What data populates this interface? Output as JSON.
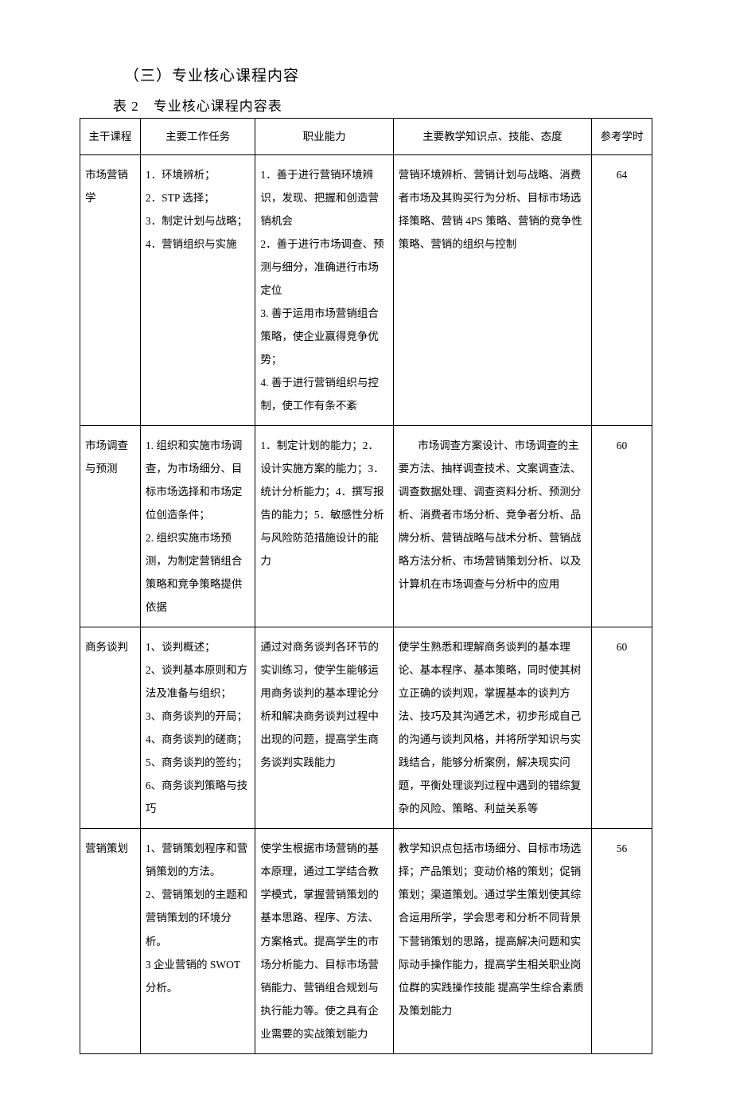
{
  "heading": "（三）专业核心课程内容",
  "caption": "表 2　专业核心课程内容表",
  "table": {
    "columns": [
      "主干课程",
      "主要工作任务",
      "职业能力",
      "主要教学知识点、技能、态度",
      "参考学时"
    ],
    "rows": [
      {
        "course": "市场营销学",
        "tasks": "1．环境辨析；\n2．STP 选择；\n3．制定计划与战略；\n4．营销组织与实施",
        "ability": "1．善于进行营销环境辨识，发现、把握和创造营销机会\n2．善于进行市场调查、预测与细分，准确进行市场定位\n3. 善于运用市场营销组合策略，使企业赢得竞争优势；\n4. 善于进行营销组织与控制，使工作有条不紊",
        "knowledge": "营销环境辨析、营销计划与战略、消费者市场及其购买行为分析、目标市场选择策略、营销 4PS 策略、营销的竞争性策略、营销的组织与控制",
        "hours": "64"
      },
      {
        "course": "市场调查与预测",
        "tasks": "1. 组织和实施市场调查，为市场细分、目标市场选择和市场定位创造条件；\n2. 组织实施市场预测，为制定营销组合策略和竞争策略提供依据",
        "ability": "1．制定计划的能力；2．设计实施方案的能力；3．统计分析能力；4．撰写报告的能力；5．敏感性分析与风险防范措施设计的能力",
        "knowledge_indent": true,
        "knowledge": "市场调查方案设计、市场调查的主要方法、抽样调查技术、文案调查法、调查数据处理、调查资料分析、预测分析、消费者市场分析、竞争者分析、品牌分析、营销战略与战术分析、营销战略方法分析、市场营销策划分析、以及计算机在市场调查与分析中的应用",
        "hours": "60"
      },
      {
        "course": "商务谈判",
        "tasks": "1、谈判概述；\n2、谈判基本原则和方法及准备与组织；\n3、商务谈判的开局；\n4、商务谈判的磋商；\n5、商务谈判的签约；\n6、商务谈判策略与技巧",
        "ability": "通过对商务谈判各环节的实训练习，使学生能够运用商务谈判的基本理论分析和解决商务谈判过程中出现的问题，提高学生商务谈判实践能力",
        "knowledge": "使学生熟悉和理解商务谈判的基本理论、基本程序、基本策略，同时使其树立正确的谈判观，掌握基本的谈判方法、技巧及其沟通艺术，初步形成自己的沟通与谈判风格，并将所学知识与实践结合，能够分析案例，解决现实问题，平衡处理谈判过程中遇到的错综复杂的风险、策略、利益关系等",
        "hours": "60"
      },
      {
        "course": "营销策划",
        "tasks": "1、营销策划程序和营销策划的方法。\n2、营销策划的主题和营销策划的环境分析。\n3 企业营销的 SWOT 分析。",
        "ability": "使学生根据市场营销的基本原理，通过工学结合教学模式，掌握营销策划的基本思路、程序、方法、方案格式。提高学生的市场分析能力、目标市场营销能力、营销组合规划与执行能力等。使之具有企业需要的实战策划能力",
        "knowledge": "教学知识点包括市场细分、目标市场选择；产品策划；变动价格的策划；促销策划；渠道策划。通过学生策划使其综合运用所学，学会思考和分析不同背景下营销策划的思路，提高解决问题和实际动手操作能力，提高学生相关职业岗位群的实践操作技能 提高学生综合素质及策划能力",
        "hours": "56"
      }
    ]
  },
  "style": {
    "page_bg": "#ffffff",
    "text_color": "#000000",
    "border_color": "#000000",
    "heading_fontsize": 19,
    "caption_fontsize": 17,
    "cell_fontsize": 13.5,
    "col_widths_pct": [
      10.5,
      20,
      24,
      34.5,
      10.5
    ],
    "line_height": 2.15
  }
}
